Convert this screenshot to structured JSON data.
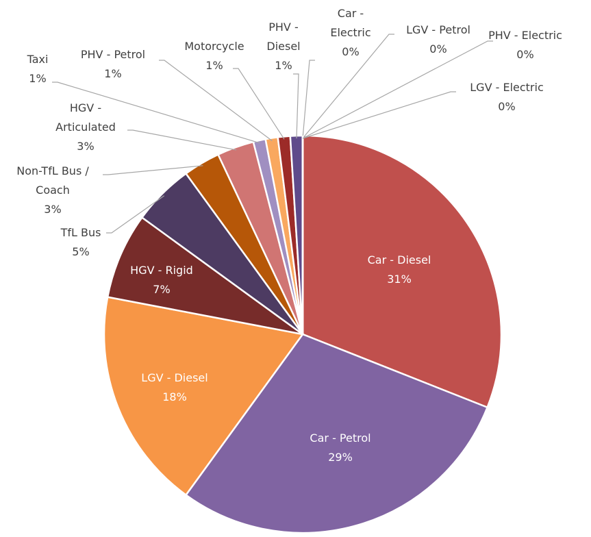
{
  "chart_data": {
    "type": "pie",
    "categories": [
      "Car - Diesel",
      "Car - Petrol",
      "LGV - Diesel",
      "HGV - Rigid",
      "TfL Bus",
      "Non-TfL Bus / Coach",
      "HGV - Articulated",
      "Taxi",
      "PHV - Petrol",
      "Motorcycle",
      "PHV - Diesel",
      "Car - Electric",
      "LGV - Petrol",
      "PHV - Electric",
      "LGV - Electric"
    ],
    "values": [
      31,
      29,
      18,
      7,
      5,
      3,
      3,
      1,
      1,
      1,
      1,
      0,
      0,
      0,
      0
    ],
    "value_labels": [
      "31%",
      "29%",
      "18%",
      "7%",
      "5%",
      "3%",
      "3%",
      "1%",
      "1%",
      "1%",
      "1%",
      "0%",
      "0%",
      "0%",
      "0%"
    ],
    "colors": [
      "#c0504d",
      "#8064a2",
      "#f79646",
      "#772c2a",
      "#4d3b62",
      "#b65708",
      "#d07573",
      "#a08fc1",
      "#f9a85f",
      "#9c2b28",
      "#5f4b8b",
      "#e6b9b8",
      "#fcd5b4",
      "#ccc0da",
      "#f2dcdb"
    ]
  }
}
